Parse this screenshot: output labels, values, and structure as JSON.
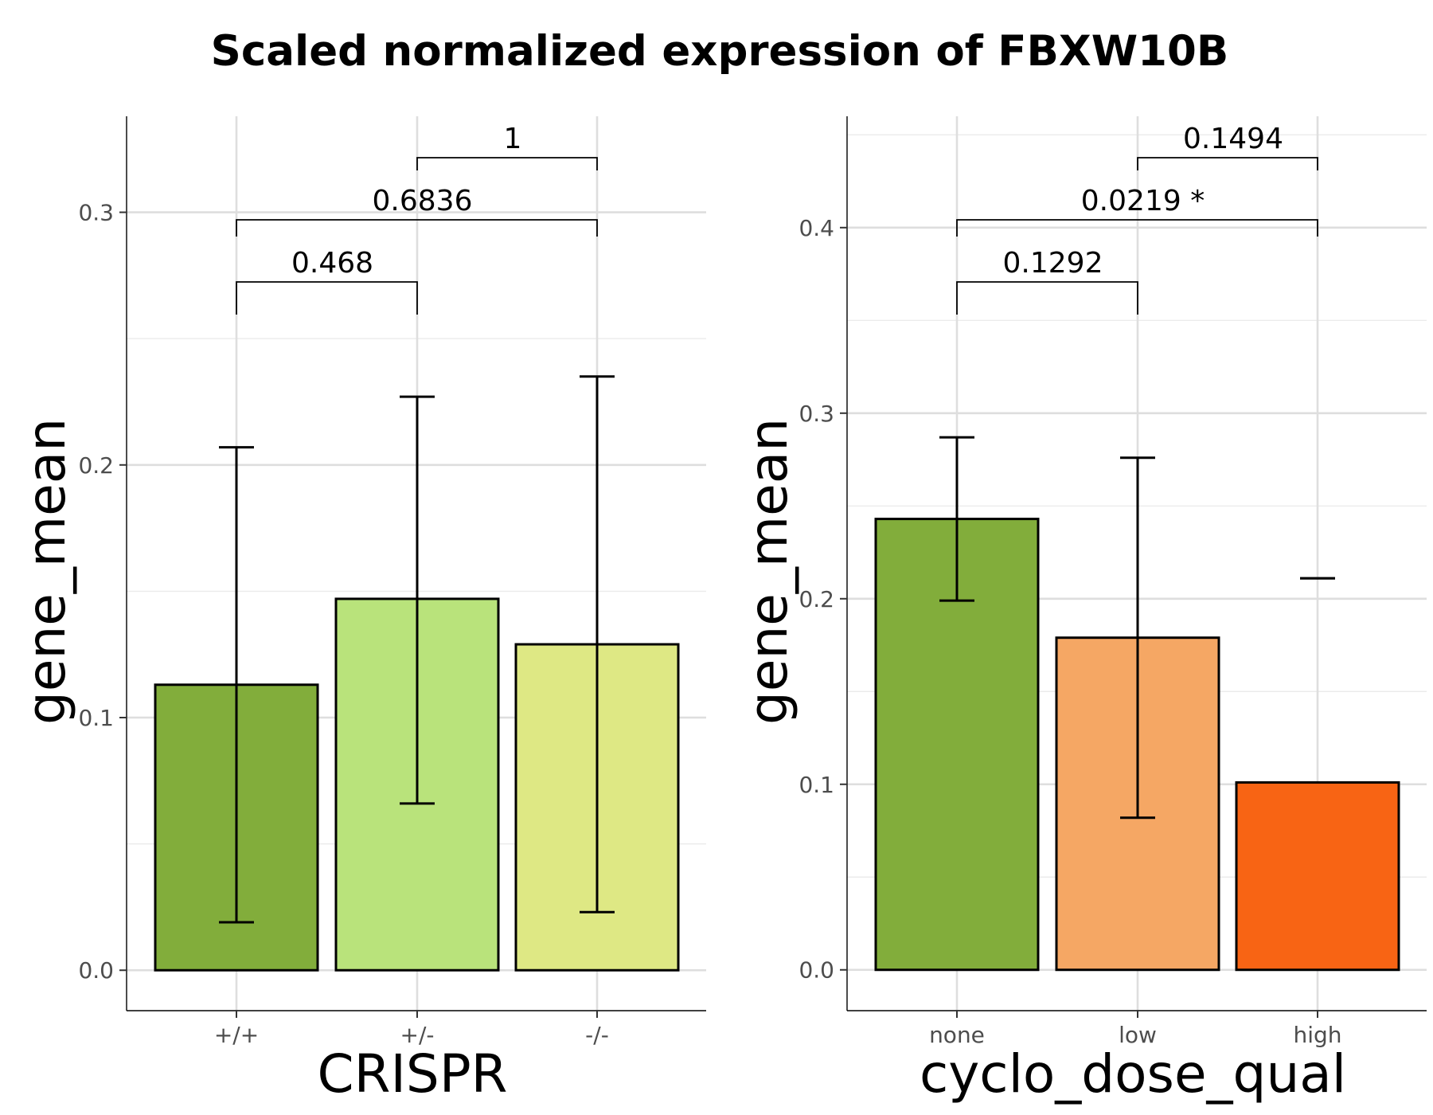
{
  "chart_data": [
    {
      "type": "bar",
      "title": "Scaled normalized expression of FBXW10B",
      "xlabel": "CRISPR",
      "ylabel": "gene_mean",
      "categories": [
        "+/+",
        "+/-",
        "-/-"
      ],
      "values": [
        0.113,
        0.147,
        0.129
      ],
      "error_lower": [
        0.019,
        0.066,
        0.023
      ],
      "error_upper": [
        0.207,
        0.227,
        0.235
      ],
      "colors": [
        "#82ad3b",
        "#b9e37b",
        "#dee884"
      ],
      "ylim": [
        -0.016,
        0.338
      ],
      "yticks": [
        "0.0",
        "0.1",
        "0.2",
        "0.3"
      ],
      "comparisons": [
        {
          "from": "+/+",
          "to": "+/-",
          "label": "0.468"
        },
        {
          "from": "+/+",
          "to": "-/-",
          "label": "0.6836"
        },
        {
          "from": "+/-",
          "to": "-/-",
          "label": "1"
        }
      ],
      "grid": true
    },
    {
      "type": "bar",
      "xlabel": "cyclo_dose_qual",
      "ylabel": "gene_mean",
      "categories": [
        "none",
        "low",
        "high"
      ],
      "values": [
        0.243,
        0.179,
        0.101
      ],
      "error_lower": [
        0.199,
        0.082,
        0.211
      ],
      "error_upper": [
        0.287,
        0.276,
        0.211
      ],
      "colors": [
        "#82ad3b",
        "#f5a764",
        "#f86414"
      ],
      "ylim": [
        -0.022,
        0.46
      ],
      "yticks": [
        "0.0",
        "0.1",
        "0.2",
        "0.3",
        "0.4"
      ],
      "comparisons": [
        {
          "from": "none",
          "to": "low",
          "label": "0.1292"
        },
        {
          "from": "none",
          "to": "high",
          "label": "0.0219 *"
        },
        {
          "from": "low",
          "to": "high",
          "label": "0.1494"
        }
      ],
      "grid": true
    }
  ]
}
